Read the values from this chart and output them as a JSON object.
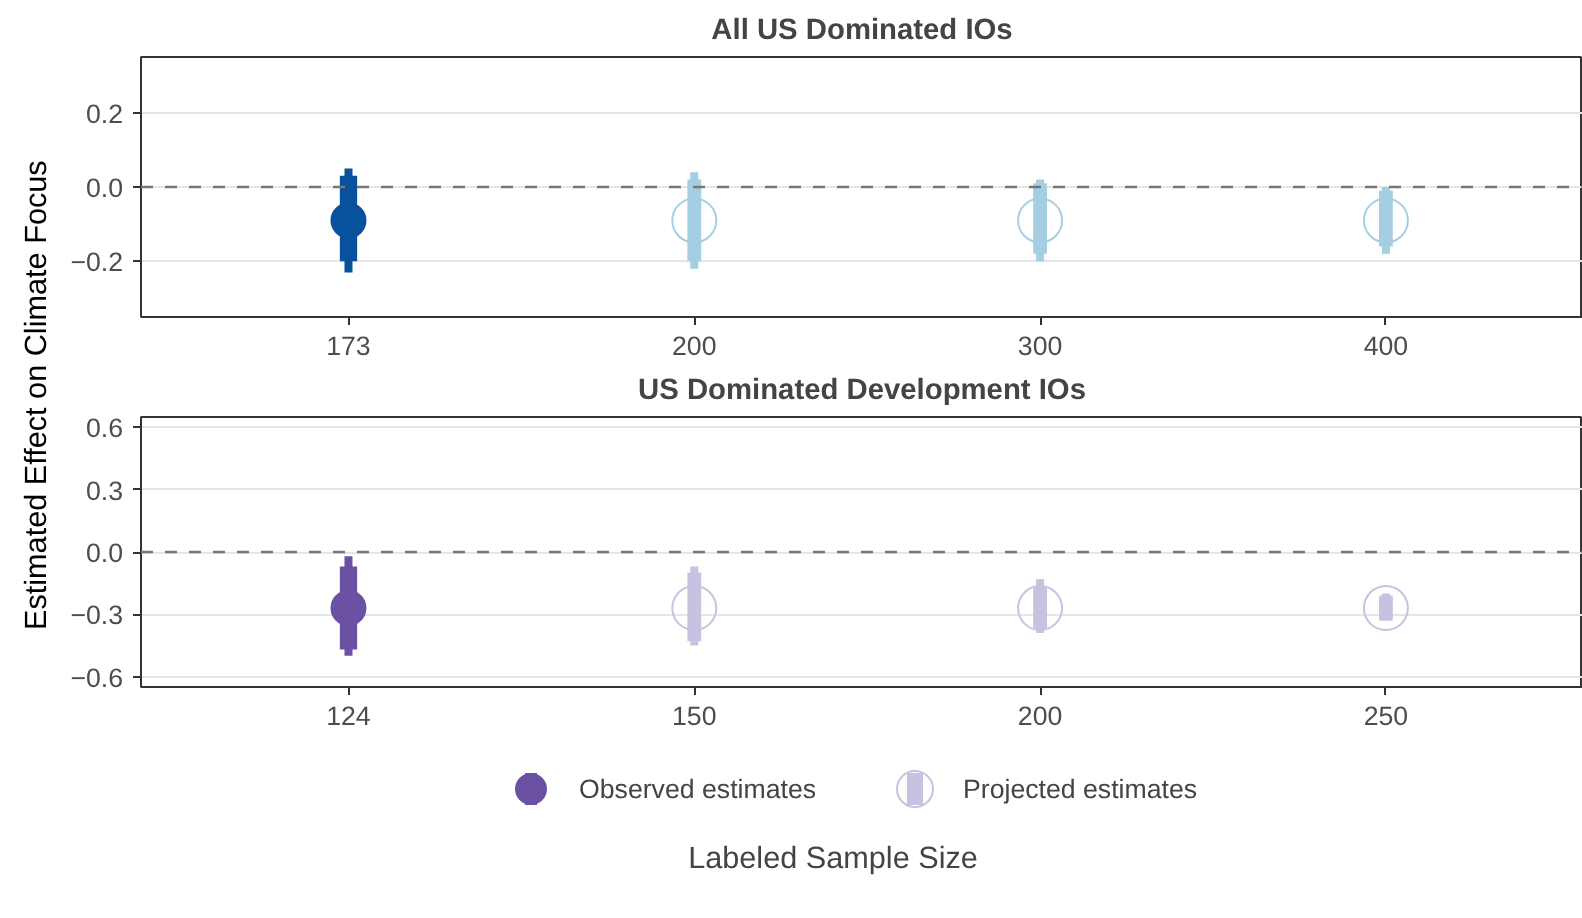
{
  "chart_data": [
    {
      "type": "scatter",
      "title": "All US Dominated IOs",
      "ylabel": "Estimated Effect on Climate Focus",
      "categories": [
        "173",
        "200",
        "300",
        "400"
      ],
      "ylim": [
        -0.35,
        0.35
      ],
      "yticks": [
        {
          "value": 0.2,
          "label": "0.2"
        },
        {
          "value": 0,
          "label": "0.0"
        },
        {
          "value": -0.2,
          "label": "−0.2"
        }
      ],
      "grid": "y",
      "marker": "circle",
      "ref_lines": [
        {
          "axis": "y",
          "value": 0,
          "line_style": "dashed",
          "color": "#777777"
        }
      ],
      "series": [
        {
          "color": "#08519c",
          "values": [
            -0.09,
            null,
            null,
            null
          ],
          "errors": [
            [
              -0.23,
              0.05
            ],
            null,
            null,
            null
          ]
        },
        {
          "color": "#a6cee3",
          "values": [
            null,
            -0.09,
            -0.09,
            -0.09
          ],
          "errors": [
            null,
            [
              -0.22,
              0.04
            ],
            [
              -0.2,
              0.02
            ],
            [
              -0.18,
              0.0
            ]
          ]
        },
        {
          "type": "bar",
          "color": "#08519c",
          "base": [
            -0.2,
            null,
            null,
            null
          ],
          "values": [
            0.23,
            null,
            null,
            null
          ]
        },
        {
          "type": "bar",
          "color": "#a6cee3",
          "base": [
            null,
            -0.2,
            -0.18,
            -0.16
          ],
          "values": [
            null,
            0.22,
            0.19,
            0.15
          ]
        }
      ]
    },
    {
      "type": "scatter",
      "title": "US Dominated Development IOs",
      "xlabel": "Labeled Sample Size",
      "categories": [
        "124",
        "150",
        "200",
        "250"
      ],
      "ylim": [
        -0.65,
        0.65
      ],
      "yticks": [
        {
          "value": 0.6,
          "label": "0.6"
        },
        {
          "value": 0.3,
          "label": "0.3"
        },
        {
          "value": 0,
          "label": "0.0"
        },
        {
          "value": -0.3,
          "label": "−0.3"
        },
        {
          "value": -0.6,
          "label": "−0.6"
        }
      ],
      "grid": "y",
      "marker": "circle",
      "legend": "bottom",
      "ref_lines": [
        {
          "axis": "y",
          "value": 0,
          "line_style": "dashed",
          "color": "#777777"
        }
      ],
      "series": [
        {
          "name": "Observed estimates",
          "color": "#6a51a3",
          "values": [
            -0.27,
            null,
            null,
            null
          ],
          "errors": [
            [
              -0.5,
              -0.02
            ],
            null,
            null,
            null
          ]
        },
        {
          "name": "Projected estimates",
          "color": "#c6c3e1",
          "values": [
            null,
            -0.27,
            -0.27,
            -0.27
          ],
          "errors": [
            null,
            [
              -0.45,
              -0.07
            ],
            [
              -0.39,
              -0.13
            ],
            [
              -0.33,
              -0.2
            ]
          ]
        },
        {
          "type": "bar",
          "color": "#6a51a3",
          "base": [
            -0.47,
            null,
            null,
            null
          ],
          "values": [
            0.4,
            null,
            null,
            null
          ]
        },
        {
          "type": "bar",
          "color": "#c6c3e1",
          "base": [
            null,
            -0.43,
            -0.37,
            -0.33
          ],
          "values": [
            null,
            0.33,
            0.2,
            0.12
          ]
        }
      ]
    }
  ]
}
